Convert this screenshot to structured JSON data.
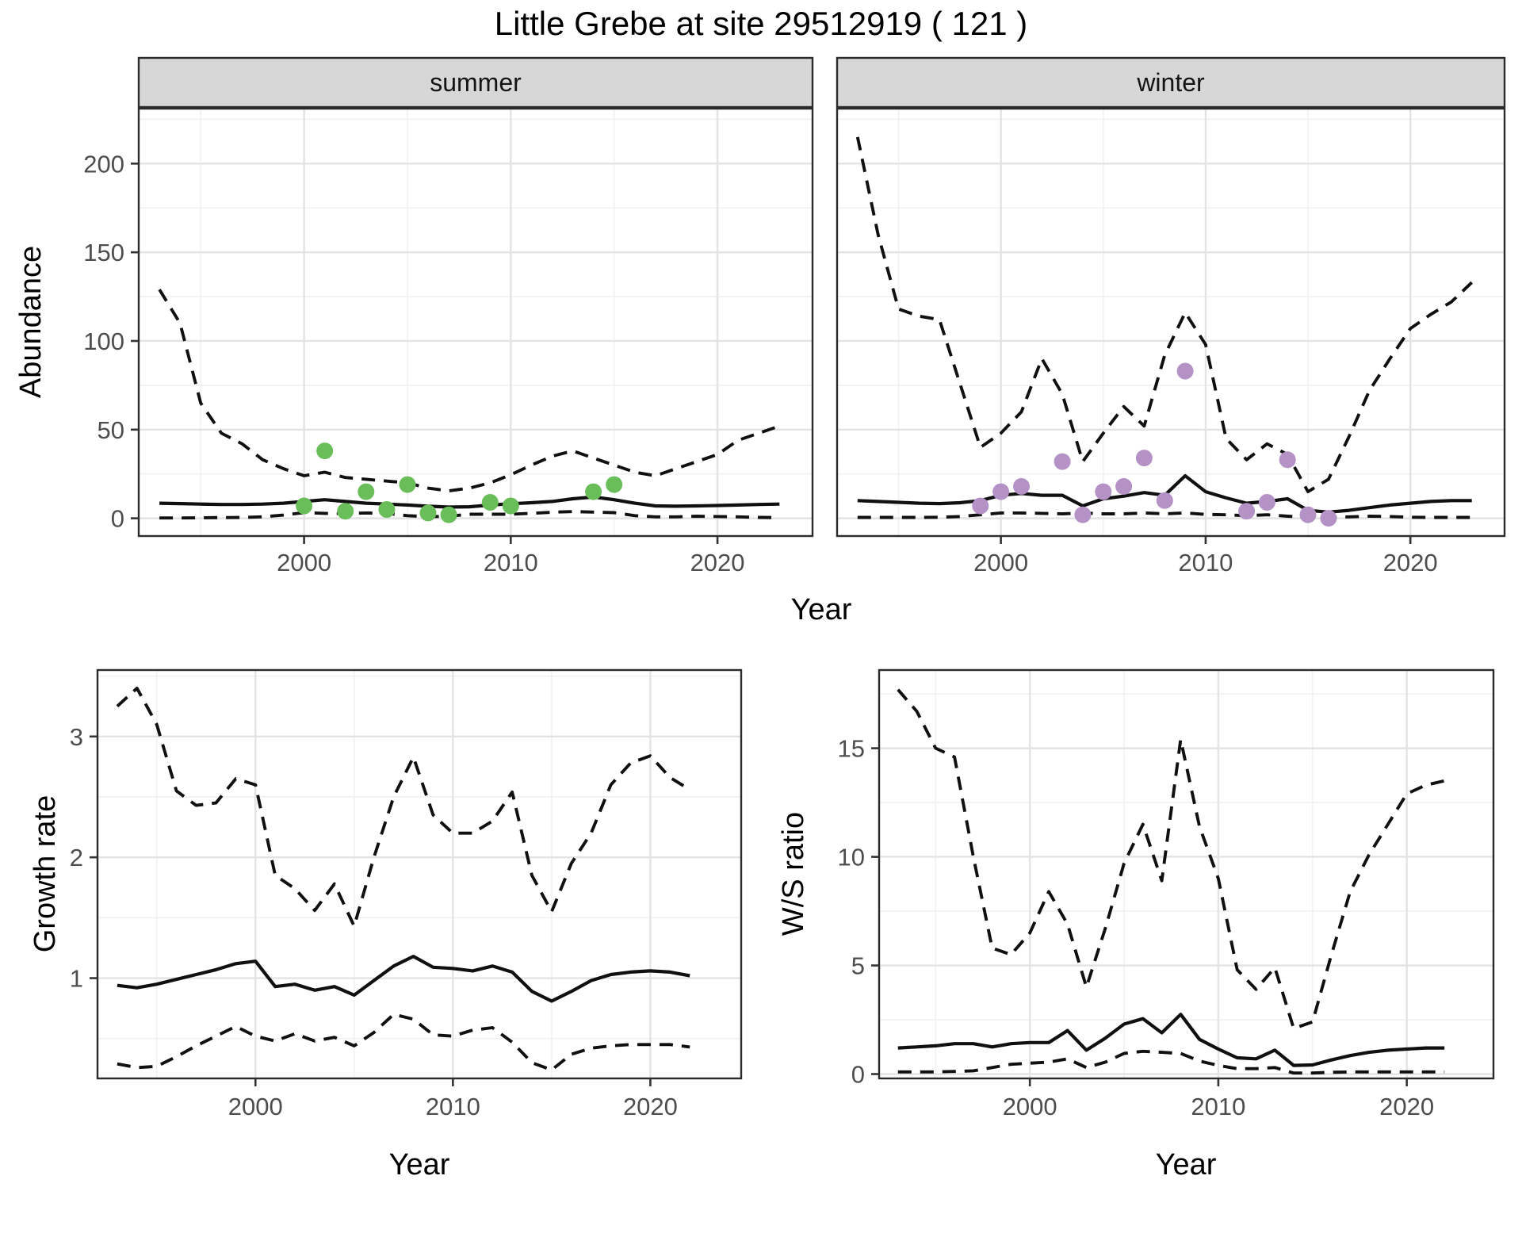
{
  "title": "Little Grebe at site 29512919 ( 121 )",
  "colors": {
    "point_green": "#6ABE5A",
    "point_purple": "#B592C6",
    "line": "#101010",
    "grid_major": "#E3E3E3",
    "grid_minor": "#F1F1F1",
    "panel_border": "#2B2B2B",
    "strip_bg": "#D7D7D7",
    "strip_text": "#141414",
    "tick_label": "#4D4D4D",
    "tick_mark": "#333333"
  },
  "chart_data": [
    {
      "id": "abundance_summer",
      "type": "line",
      "title": "summer",
      "xlabel": "Year",
      "ylabel": "Abundance",
      "xlim": [
        1992,
        2024.6
      ],
      "ylim": [
        -10,
        231
      ],
      "xticks": [
        2000,
        2010,
        2020
      ],
      "yticks": [
        0,
        50,
        100,
        150,
        200
      ],
      "xticks_minor": [
        1995,
        2005,
        2015
      ],
      "yticks_minor": [
        25,
        75,
        125,
        175,
        225
      ],
      "grid": true,
      "legend": "none",
      "years": [
        1993,
        1994,
        1995,
        1996,
        1997,
        1998,
        1999,
        2000,
        2001,
        2002,
        2003,
        2004,
        2005,
        2006,
        2007,
        2008,
        2009,
        2010,
        2011,
        2012,
        2013,
        2014,
        2015,
        2016,
        2017,
        2018,
        2019,
        2020,
        2021,
        2022,
        2023
      ],
      "series": [
        {
          "name": "upper_95ci",
          "style": "dashed",
          "values": [
            129,
            110,
            65,
            48,
            42,
            33,
            28,
            24,
            26,
            23,
            22,
            21,
            20,
            17,
            15.5,
            17,
            20,
            24.5,
            30,
            35,
            38,
            34,
            30,
            26,
            24,
            28,
            32,
            36,
            44,
            48,
            52
          ]
        },
        {
          "name": "lower_95ci",
          "style": "dashed",
          "values": [
            0.2,
            0.2,
            0.3,
            0.4,
            0.5,
            0.8,
            1.8,
            3.2,
            2.8,
            2.7,
            3,
            2.7,
            1.5,
            0.9,
            1.2,
            2.3,
            2.3,
            2.3,
            2.8,
            3.4,
            3.8,
            3.5,
            3.2,
            1.5,
            0.8,
            0.8,
            1.2,
            1,
            0.8,
            0.5,
            0.4
          ]
        },
        {
          "name": "median",
          "style": "solid",
          "values": [
            8.5,
            8.3,
            8,
            7.8,
            7.8,
            8,
            8.5,
            9.5,
            10.5,
            9.5,
            8.5,
            8,
            7.5,
            6.8,
            6.3,
            6.5,
            7.5,
            8.2,
            8.8,
            9.5,
            11,
            12,
            10.5,
            8.5,
            7,
            6.8,
            7,
            7.2,
            7.5,
            7.8,
            8
          ]
        }
      ],
      "points": {
        "name": "observed_counts",
        "color_key": "point_green",
        "x": [
          2000,
          2001,
          2002,
          2003,
          2004,
          2005,
          2006,
          2007,
          2009,
          2010,
          2014,
          2015
        ],
        "y": [
          7,
          38,
          4,
          15,
          5,
          19,
          3,
          2,
          9,
          7,
          15,
          19
        ]
      }
    },
    {
      "id": "abundance_winter",
      "type": "line",
      "title": "winter",
      "xlabel": "Year",
      "ylabel": "Abundance",
      "xlim": [
        1992,
        2024.6
      ],
      "ylim": [
        -10,
        231
      ],
      "xticks": [
        2000,
        2010,
        2020
      ],
      "yticks": [
        0,
        50,
        100,
        150,
        200
      ],
      "xticks_minor": [
        1995,
        2005,
        2015
      ],
      "yticks_minor": [
        25,
        75,
        125,
        175,
        225
      ],
      "grid": true,
      "legend": "none",
      "years": [
        1993,
        1994,
        1995,
        1996,
        1997,
        1998,
        1999,
        2000,
        2001,
        2002,
        2003,
        2004,
        2005,
        2006,
        2007,
        2008,
        2009,
        2010,
        2011,
        2012,
        2013,
        2014,
        2015,
        2016,
        2017,
        2018,
        2019,
        2020,
        2021,
        2022,
        2023
      ],
      "series": [
        {
          "name": "upper_95ci",
          "style": "dashed",
          "values": [
            215,
            160,
            118,
            114,
            112,
            76,
            40,
            48,
            60,
            90,
            70,
            32,
            48,
            63,
            52,
            92,
            116,
            98,
            45,
            33,
            42,
            36,
            15,
            22,
            46,
            72,
            90,
            107,
            115,
            122,
            133
          ]
        },
        {
          "name": "lower_95ci",
          "style": "dashed",
          "values": [
            0.5,
            0.5,
            0.5,
            0.5,
            0.6,
            1,
            2,
            3,
            3,
            2.8,
            2.5,
            3,
            2.5,
            2.5,
            3,
            2.5,
            3,
            2.2,
            2,
            1.5,
            2,
            1.2,
            0.5,
            0.5,
            0.8,
            1.2,
            1,
            0.6,
            0.5,
            0.5,
            0.5
          ]
        },
        {
          "name": "median",
          "style": "solid",
          "values": [
            10,
            9.5,
            9,
            8.5,
            8.3,
            8.8,
            10,
            13,
            14,
            13,
            13,
            7,
            11,
            12.5,
            14.5,
            13,
            24,
            15,
            11.5,
            8.5,
            9.5,
            11,
            4.5,
            3.5,
            4.5,
            6,
            7.5,
            8.5,
            9.5,
            10,
            10
          ]
        }
      ],
      "points": {
        "name": "observed_counts",
        "color_key": "point_purple",
        "x": [
          1999,
          2000,
          2001,
          2003,
          2004,
          2005,
          2006,
          2007,
          2008,
          2009,
          2012,
          2013,
          2014,
          2015,
          2016
        ],
        "y": [
          7,
          15,
          18,
          32,
          2,
          15,
          18,
          34,
          10,
          83,
          4,
          9,
          33,
          2,
          0
        ]
      }
    },
    {
      "id": "growth_rate",
      "type": "line",
      "title": "",
      "xlabel": "Year",
      "ylabel": "Growth rate",
      "xlim": [
        1992,
        2024.6
      ],
      "ylim": [
        0.17,
        3.55
      ],
      "xticks": [
        2000,
        2010,
        2020
      ],
      "yticks": [
        1,
        2,
        3
      ],
      "xticks_minor": [
        1995,
        2005,
        2015
      ],
      "yticks_minor": [
        0.5,
        1.5,
        2.5,
        3.5
      ],
      "grid": true,
      "legend": "none",
      "years": [
        1993,
        1994,
        1995,
        1996,
        1997,
        1998,
        1999,
        2000,
        2001,
        2002,
        2003,
        2004,
        2005,
        2006,
        2007,
        2008,
        2009,
        2010,
        2011,
        2012,
        2013,
        2014,
        2015,
        2016,
        2017,
        2018,
        2019,
        2020,
        2021,
        2022
      ],
      "series": [
        {
          "name": "upper_95ci",
          "style": "dashed",
          "values": [
            3.25,
            3.4,
            3.1,
            2.55,
            2.43,
            2.45,
            2.65,
            2.6,
            1.85,
            1.74,
            1.56,
            1.78,
            1.43,
            2.0,
            2.5,
            2.83,
            2.35,
            2.2,
            2.2,
            2.3,
            2.54,
            1.85,
            1.55,
            1.95,
            2.2,
            2.6,
            2.78,
            2.84,
            2.66,
            2.56
          ]
        },
        {
          "name": "lower_95ci",
          "style": "dashed",
          "values": [
            0.29,
            0.26,
            0.27,
            0.35,
            0.44,
            0.52,
            0.6,
            0.52,
            0.48,
            0.54,
            0.48,
            0.51,
            0.44,
            0.55,
            0.7,
            0.66,
            0.53,
            0.52,
            0.57,
            0.59,
            0.47,
            0.3,
            0.24,
            0.37,
            0.42,
            0.44,
            0.45,
            0.45,
            0.45,
            0.43
          ]
        },
        {
          "name": "median",
          "style": "solid",
          "values": [
            0.94,
            0.92,
            0.95,
            0.99,
            1.03,
            1.07,
            1.12,
            1.14,
            0.93,
            0.95,
            0.9,
            0.93,
            0.86,
            0.98,
            1.1,
            1.18,
            1.09,
            1.08,
            1.06,
            1.1,
            1.05,
            0.89,
            0.81,
            0.89,
            0.98,
            1.03,
            1.05,
            1.06,
            1.05,
            1.02
          ]
        }
      ],
      "points": null
    },
    {
      "id": "ws_ratio",
      "type": "line",
      "title": "",
      "xlabel": "Year",
      "ylabel": "W/S ratio",
      "xlim": [
        1992,
        2024.6
      ],
      "ylim": [
        -0.2,
        18.6
      ],
      "xticks": [
        2000,
        2010,
        2020
      ],
      "yticks": [
        0,
        5,
        10,
        15
      ],
      "xticks_minor": [
        1995,
        2005,
        2015
      ],
      "yticks_minor": [
        2.5,
        7.5,
        12.5,
        17.5
      ],
      "grid": true,
      "legend": "none",
      "years": [
        1993,
        1994,
        1995,
        1996,
        1997,
        1998,
        1999,
        2000,
        2001,
        2002,
        2003,
        2004,
        2005,
        2006,
        2007,
        2008,
        2009,
        2010,
        2011,
        2012,
        2013,
        2014,
        2015,
        2016,
        2017,
        2018,
        2019,
        2020,
        2021,
        2022
      ],
      "series": [
        {
          "name": "upper_95ci",
          "style": "dashed",
          "values": [
            17.7,
            16.7,
            15.0,
            14.6,
            10.0,
            5.8,
            5.5,
            6.5,
            8.4,
            6.9,
            4.0,
            6.7,
            9.7,
            11.5,
            8.9,
            15.4,
            11.4,
            9.0,
            4.8,
            3.9,
            4.9,
            2.1,
            2.4,
            5.5,
            8.4,
            10.1,
            11.5,
            12.9,
            13.3,
            13.5
          ]
        },
        {
          "name": "lower_95ci",
          "style": "dashed",
          "values": [
            0.1,
            0.1,
            0.1,
            0.12,
            0.15,
            0.3,
            0.45,
            0.5,
            0.55,
            0.7,
            0.3,
            0.55,
            0.95,
            1.05,
            1.0,
            0.95,
            0.6,
            0.4,
            0.25,
            0.25,
            0.3,
            0.05,
            0.05,
            0.08,
            0.1,
            0.1,
            0.1,
            0.1,
            0.1,
            0.1
          ]
        },
        {
          "name": "median",
          "style": "solid",
          "values": [
            1.2,
            1.25,
            1.3,
            1.4,
            1.4,
            1.25,
            1.4,
            1.45,
            1.45,
            2.0,
            1.1,
            1.65,
            2.3,
            2.55,
            1.9,
            2.75,
            1.6,
            1.15,
            0.75,
            0.7,
            1.1,
            0.4,
            0.42,
            0.65,
            0.85,
            1.0,
            1.1,
            1.15,
            1.2,
            1.2
          ]
        }
      ],
      "points": null
    }
  ]
}
